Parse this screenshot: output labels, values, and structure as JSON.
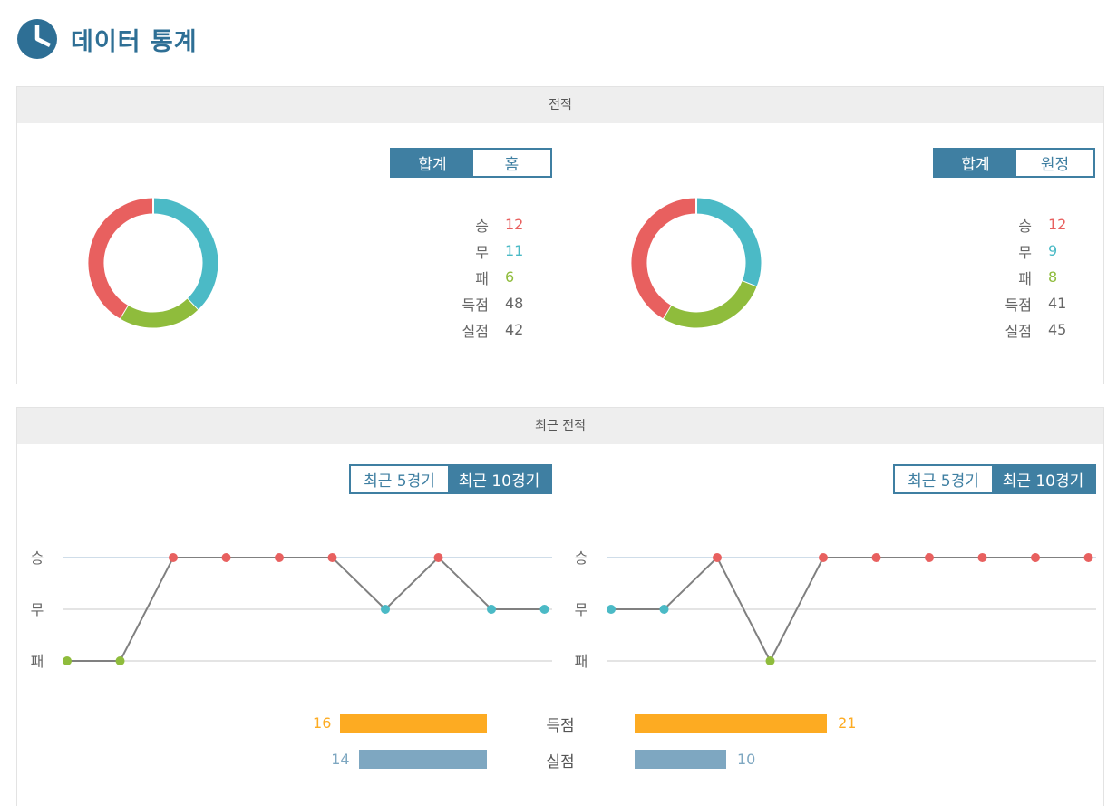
{
  "page_title": "데이터 통계",
  "record_section": {
    "title": "전적",
    "left": {
      "tabs": [
        "합계",
        "홈"
      ],
      "active_tab": 0
    },
    "right": {
      "tabs": [
        "합계",
        "원정"
      ],
      "active_tab": 0
    }
  },
  "recent_section": {
    "title": "최근 전적",
    "left": {
      "tabs": [
        "최근 5경기",
        "최근 10경기"
      ],
      "active_tab": 1
    },
    "right": {
      "tabs": [
        "최근 5경기",
        "최근 10경기"
      ],
      "active_tab": 1
    }
  },
  "colors": {
    "win": "#e8605f",
    "draw": "#4bbac6",
    "loss": "#8fbc3c",
    "neutral": "#666666",
    "accent": "#3f7fa2",
    "goals_for": "#fdab22",
    "goals_against": "#7ea7c1"
  },
  "chart_data": [
    {
      "type": "pie",
      "variant": "donut",
      "side": "left",
      "labels": [
        "승",
        "무",
        "패",
        "득점",
        "실점"
      ],
      "slices": [
        {
          "label": "무",
          "value": 11,
          "color": "#4bbac6"
        },
        {
          "label": "패",
          "value": 6,
          "color": "#8fbc3c"
        },
        {
          "label": "승",
          "value": 12,
          "color": "#e8605f"
        }
      ],
      "values": {
        "win": 12,
        "draw": 11,
        "loss": 6,
        "goals_for": 48,
        "goals_against": 42
      }
    },
    {
      "type": "pie",
      "variant": "donut",
      "side": "right",
      "labels": [
        "승",
        "무",
        "패",
        "득점",
        "실점"
      ],
      "slices": [
        {
          "label": "무",
          "value": 9,
          "color": "#4bbac6"
        },
        {
          "label": "패",
          "value": 8,
          "color": "#8fbc3c"
        },
        {
          "label": "승",
          "value": 12,
          "color": "#e8605f"
        }
      ],
      "values": {
        "win": 12,
        "draw": 9,
        "loss": 8,
        "goals_for": 41,
        "goals_against": 45
      }
    },
    {
      "type": "line",
      "side": "left",
      "y_categories": [
        "승",
        "무",
        "패"
      ],
      "results": [
        "패",
        "패",
        "승",
        "승",
        "승",
        "승",
        "무",
        "승",
        "무",
        "무"
      ]
    },
    {
      "type": "line",
      "side": "right",
      "y_categories": [
        "승",
        "무",
        "패"
      ],
      "results": [
        "무",
        "무",
        "승",
        "패",
        "승",
        "승",
        "승",
        "승",
        "승",
        "승"
      ]
    },
    {
      "type": "bar",
      "orientation": "horizontal-diverging",
      "categories": [
        "득점",
        "실점"
      ],
      "left_values": [
        16,
        14
      ],
      "right_values": [
        21,
        10
      ]
    }
  ]
}
